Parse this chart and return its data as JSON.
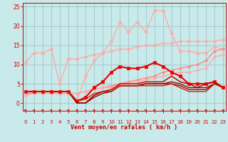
{
  "background_color": "#c8eaea",
  "grid_color": "#aacccc",
  "xlabel": "Vent moyen/en rafales ( km/h )",
  "tick_color": "#cc0000",
  "arrow_color": "#cc0000",
  "xlim": [
    -0.3,
    23.3
  ],
  "ylim": [
    -2,
    26
  ],
  "yticks": [
    0,
    5,
    10,
    15,
    20,
    25
  ],
  "xticks": [
    0,
    1,
    2,
    3,
    4,
    5,
    6,
    7,
    8,
    9,
    10,
    11,
    12,
    13,
    14,
    15,
    16,
    17,
    18,
    19,
    20,
    21,
    22,
    23
  ],
  "lines": [
    {
      "x": [
        0,
        1,
        2,
        3,
        4,
        5,
        6,
        7,
        8,
        9,
        10,
        11,
        12,
        13,
        14,
        15,
        16,
        17,
        18,
        19,
        20,
        21,
        22,
        23
      ],
      "y": [
        10.5,
        13,
        13,
        14,
        5,
        11.5,
        11.5,
        12,
        12.5,
        13,
        13.5,
        14,
        14,
        14.5,
        15,
        15,
        15.5,
        15.5,
        16,
        16,
        16,
        16,
        16,
        16.5
      ],
      "color": "#ffaaaa",
      "lw": 1.0,
      "marker": "D",
      "ms": 2.5
    },
    {
      "x": [
        0,
        1,
        2,
        3,
        4,
        5,
        6,
        7,
        8,
        9,
        10,
        11,
        12,
        13,
        14,
        15,
        16,
        17,
        18,
        19,
        20,
        21,
        22,
        23
      ],
      "y": [
        2,
        3,
        3,
        3,
        2.5,
        2.5,
        0.5,
        7,
        11,
        13,
        16,
        21,
        18.5,
        21,
        18.5,
        24,
        24,
        18,
        13.5,
        13.5,
        13,
        13,
        14.5,
        14
      ],
      "color": "#ffaaaa",
      "lw": 1.0,
      "marker": "D",
      "ms": 2.5
    },
    {
      "x": [
        0,
        1,
        2,
        3,
        4,
        5,
        6,
        7,
        8,
        9,
        10,
        11,
        12,
        13,
        14,
        15,
        16,
        17,
        18,
        19,
        20,
        21,
        22,
        23
      ],
      "y": [
        2,
        3,
        3,
        3,
        2.5,
        2.5,
        2.5,
        3,
        3.5,
        4,
        4.5,
        5,
        5.5,
        6,
        6.5,
        7,
        8,
        8.5,
        9,
        9.5,
        10,
        11,
        13.5,
        14
      ],
      "color": "#ff8888",
      "lw": 1.0,
      "marker": "D",
      "ms": 2.0
    },
    {
      "x": [
        0,
        1,
        2,
        3,
        4,
        5,
        6,
        7,
        8,
        9,
        10,
        11,
        12,
        13,
        14,
        15,
        16,
        17,
        18,
        19,
        20,
        21,
        22,
        23
      ],
      "y": [
        2,
        2.5,
        2.5,
        2.5,
        2.5,
        2.5,
        2.5,
        3,
        3.5,
        4,
        4,
        4.5,
        5,
        5.5,
        6,
        6.5,
        7,
        7.5,
        8,
        8,
        8.5,
        9,
        12,
        12.5
      ],
      "color": "#ffaaaa",
      "lw": 1.0,
      "marker": "D",
      "ms": 2.0
    },
    {
      "x": [
        0,
        1,
        2,
        3,
        4,
        5,
        6,
        7,
        8,
        9,
        10,
        11,
        12,
        13,
        14,
        15,
        16,
        17,
        18,
        19,
        20,
        21,
        22,
        23
      ],
      "y": [
        3,
        3,
        3,
        3,
        3,
        3,
        0.5,
        1.5,
        4,
        5.5,
        8,
        9.5,
        9,
        9,
        9.5,
        10.5,
        9.5,
        8,
        7,
        5,
        5,
        5,
        5.5,
        4
      ],
      "color": "#ee0000",
      "lw": 1.5,
      "marker": "s",
      "ms": 2.8
    },
    {
      "x": [
        0,
        1,
        2,
        3,
        4,
        5,
        6,
        7,
        8,
        9,
        10,
        11,
        12,
        13,
        14,
        15,
        16,
        17,
        18,
        19,
        20,
        21,
        22,
        23
      ],
      "y": [
        3,
        3,
        3,
        3,
        3,
        3,
        0,
        0,
        2,
        3,
        3.5,
        5,
        5,
        5,
        5.5,
        5.5,
        5.5,
        7,
        5.5,
        5,
        4,
        5,
        5.5,
        4
      ],
      "color": "#cc0000",
      "lw": 1.1,
      "marker": null,
      "ms": 0
    },
    {
      "x": [
        0,
        1,
        2,
        3,
        4,
        5,
        6,
        7,
        8,
        9,
        10,
        11,
        12,
        13,
        14,
        15,
        16,
        17,
        18,
        19,
        20,
        21,
        22,
        23
      ],
      "y": [
        3,
        3,
        3,
        3,
        3,
        3,
        0,
        0,
        1.5,
        2.5,
        3,
        4.5,
        4.5,
        4.5,
        5,
        5,
        5,
        5.5,
        5,
        4,
        4,
        4,
        5,
        4
      ],
      "color": "#990000",
      "lw": 1.0,
      "marker": null,
      "ms": 0
    },
    {
      "x": [
        0,
        1,
        2,
        3,
        4,
        5,
        6,
        7,
        8,
        9,
        10,
        11,
        12,
        13,
        14,
        15,
        16,
        17,
        18,
        19,
        20,
        21,
        22,
        23
      ],
      "y": [
        3,
        3,
        3,
        3,
        3,
        3,
        0,
        0,
        2,
        3,
        3,
        4.5,
        4.5,
        4.5,
        5,
        5,
        5,
        5,
        4.5,
        3.5,
        3.5,
        3.5,
        5,
        4
      ],
      "color": "#aa0000",
      "lw": 1.0,
      "marker": null,
      "ms": 0
    },
    {
      "x": [
        0,
        1,
        2,
        3,
        4,
        5,
        6,
        7,
        8,
        9,
        10,
        11,
        12,
        13,
        14,
        15,
        16,
        17,
        18,
        19,
        20,
        21,
        22,
        23
      ],
      "y": [
        3,
        3,
        3,
        3,
        3,
        3,
        0.5,
        1,
        2.5,
        3,
        3,
        4.5,
        4.5,
        4.5,
        4.5,
        4.5,
        4.5,
        5,
        4,
        3,
        3,
        3,
        5,
        4
      ],
      "color": "#cc2200",
      "lw": 1.0,
      "marker": null,
      "ms": 0
    }
  ]
}
